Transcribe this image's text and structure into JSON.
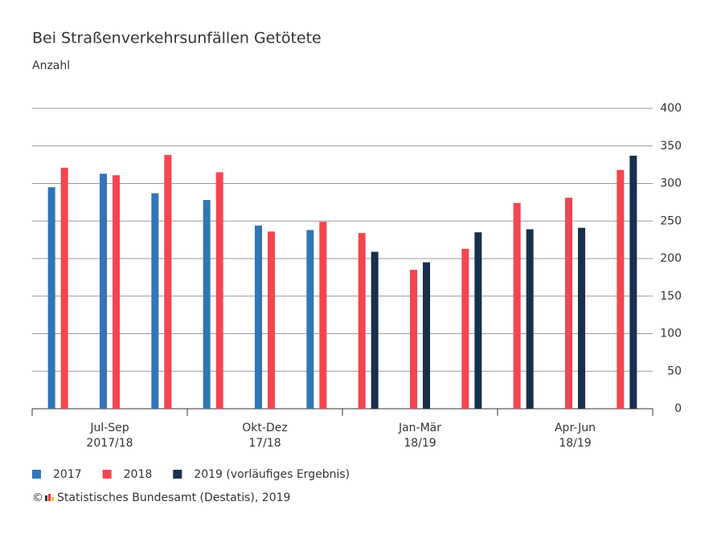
{
  "chart_data": {
    "type": "bar",
    "title": "Bei Straßenverkehrsunfällen Getötete",
    "subtitle": "Anzahl",
    "categories": [
      null,
      null,
      null,
      null,
      null,
      null,
      null,
      null,
      null,
      null,
      null,
      null
    ],
    "groups": [
      [
        "Jul-Sep",
        "2017/18"
      ],
      [
        "Okt-Dez",
        "17/18"
      ],
      [
        "Jan-Mär",
        "18/19"
      ],
      [
        "Apr-Jun",
        "18/19"
      ]
    ],
    "series": [
      {
        "name": "2017",
        "color": "#3275b8",
        "values": [
          295,
          313,
          287,
          278,
          244,
          238,
          null,
          null,
          null,
          null,
          null,
          null
        ]
      },
      {
        "name": "2018",
        "color": "#f5454f",
        "values": [
          321,
          311,
          338,
          315,
          236,
          249,
          234,
          185,
          213,
          274,
          281,
          318
        ]
      },
      {
        "name": "2019 (vorläufiges Ergebnis)",
        "color": "#17304e",
        "values": [
          null,
          null,
          null,
          null,
          null,
          null,
          209,
          195,
          235,
          239,
          241,
          337
        ]
      }
    ],
    "ylim": [
      0,
      400
    ],
    "yticks": [
      0,
      50,
      100,
      150,
      200,
      250,
      300,
      350,
      400
    ],
    "grid": true,
    "copyright": "©",
    "source": "Statistisches Bundesamt (Destatis), 2019"
  }
}
